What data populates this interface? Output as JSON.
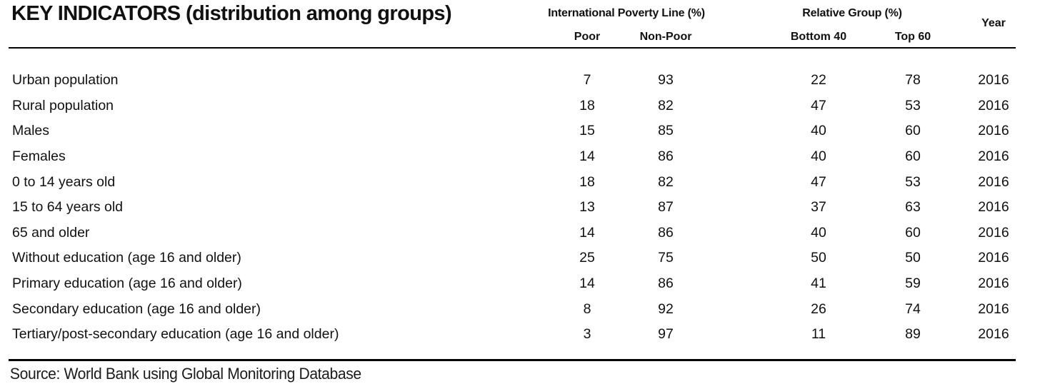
{
  "chart_data": {
    "type": "table",
    "title": "KEY INDICATORS (distribution among groups)",
    "column_groups": [
      {
        "label": "International Poverty Line (%)",
        "columns": [
          "Poor",
          "Non-Poor"
        ]
      },
      {
        "label": "Relative Group (%)",
        "columns": [
          "Bottom 40",
          "Top 60"
        ]
      }
    ],
    "year_column": "Year",
    "rows": [
      {
        "label": "Urban population",
        "values": [
          7,
          93,
          22,
          78
        ],
        "year": 2016
      },
      {
        "label": "Rural population",
        "values": [
          18,
          82,
          47,
          53
        ],
        "year": 2016
      },
      {
        "label": "Males",
        "values": [
          15,
          85,
          40,
          60
        ],
        "year": 2016
      },
      {
        "label": "Females",
        "values": [
          14,
          86,
          40,
          60
        ],
        "year": 2016
      },
      {
        "label": "0 to 14 years old",
        "values": [
          18,
          82,
          47,
          53
        ],
        "year": 2016
      },
      {
        "label": "15 to 64 years old",
        "values": [
          13,
          87,
          37,
          63
        ],
        "year": 2016
      },
      {
        "label": "65 and older",
        "values": [
          14,
          86,
          40,
          60
        ],
        "year": 2016
      },
      {
        "label": "Without education (age 16 and older)",
        "values": [
          25,
          75,
          50,
          50
        ],
        "year": 2016
      },
      {
        "label": "Primary education (age 16 and older)",
        "values": [
          14,
          86,
          41,
          59
        ],
        "year": 2016
      },
      {
        "label": "Secondary education (age 16 and older)",
        "values": [
          8,
          92,
          26,
          74
        ],
        "year": 2016
      },
      {
        "label": "Tertiary/post-secondary education (age 16 and older)",
        "values": [
          3,
          97,
          11,
          89
        ],
        "year": 2016
      }
    ],
    "source": "Source: World Bank using Global Monitoring Database"
  }
}
